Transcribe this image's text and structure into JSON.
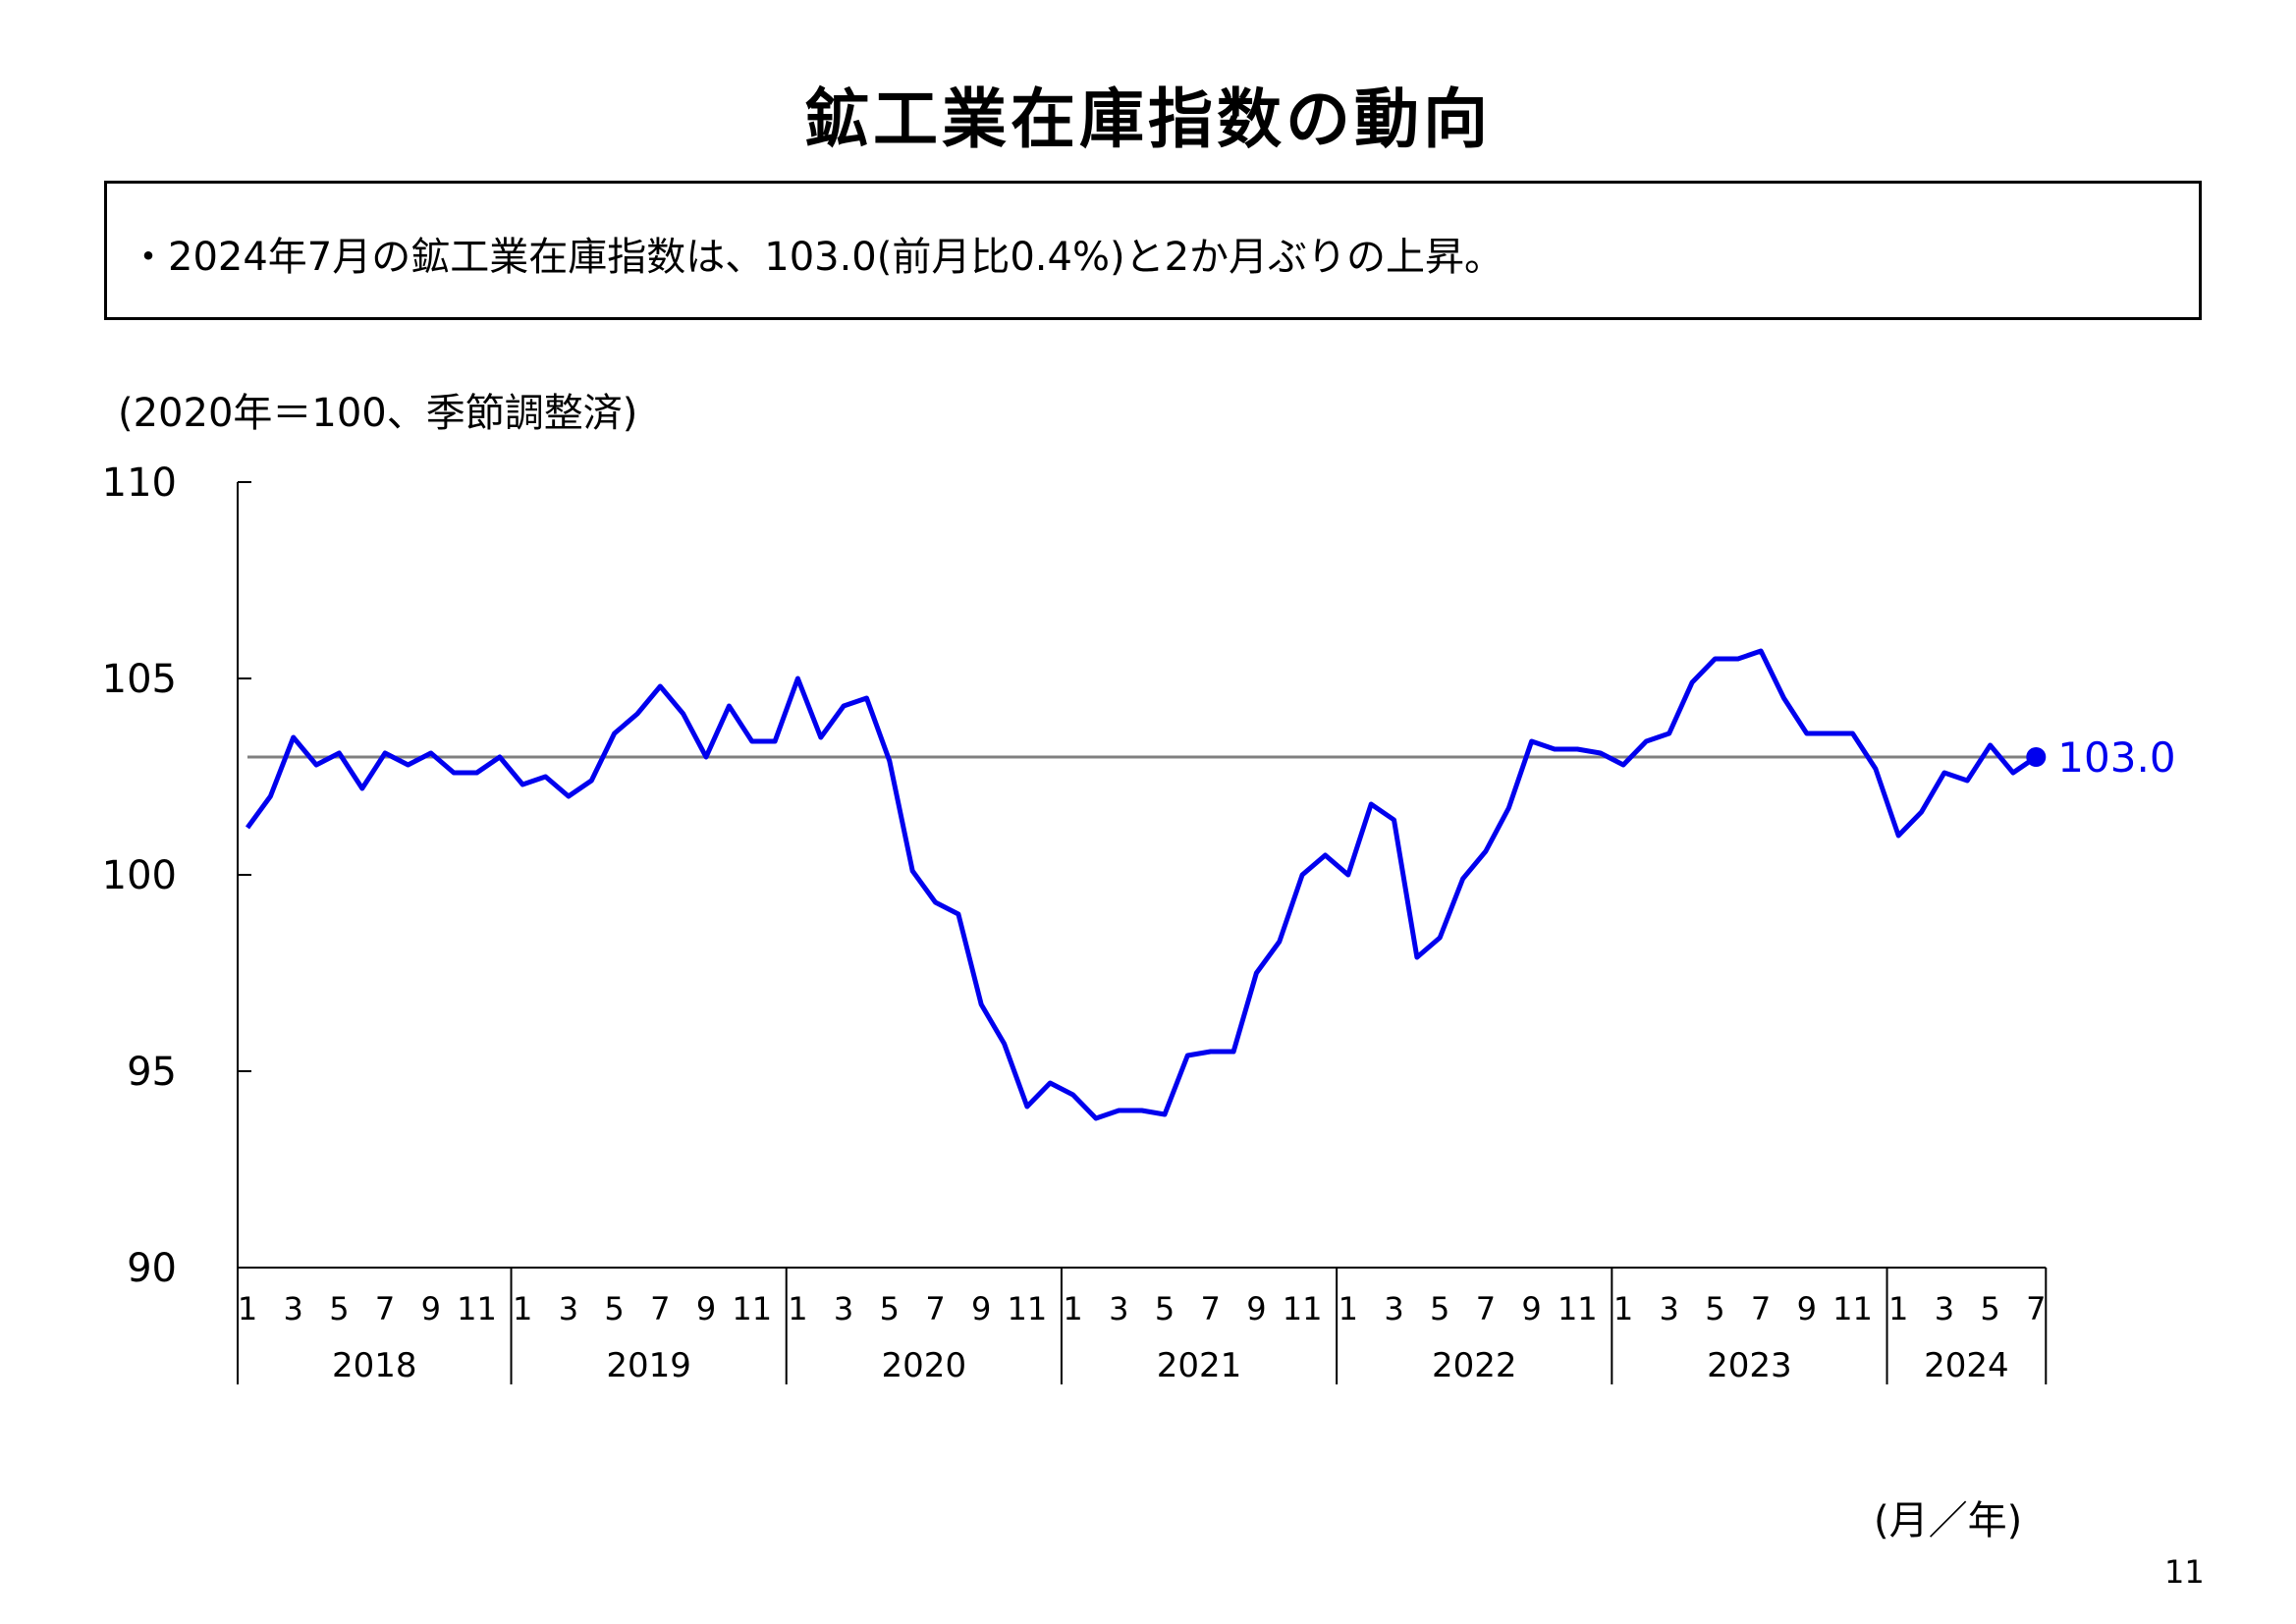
{
  "header": {
    "title": "鉱工業在庫指数の動向",
    "summary": "・2024年7月の鉱工業在庫指数は、103.0(前月比0.4%)と2か月ぶりの上昇。",
    "unit_note": "(2020年＝100、季節調整済)",
    "axis_unit": "(月／年)",
    "page_number": "11"
  },
  "colors": {
    "series": "#0000ee",
    "reference_line": "#808080",
    "axis": "#000000"
  },
  "chart_data": {
    "type": "line",
    "title": "鉱工業在庫指数の動向",
    "xlabel": "(月／年)",
    "ylabel": "(2020年＝100、季節調整済)",
    "ylim": [
      90,
      110
    ],
    "yticks": [
      90,
      95,
      100,
      105,
      110
    ],
    "grid": false,
    "reference_line": 103.0,
    "years": [
      {
        "label": "2018",
        "months": 12
      },
      {
        "label": "2019",
        "months": 12
      },
      {
        "label": "2020",
        "months": 12
      },
      {
        "label": "2021",
        "months": 12
      },
      {
        "label": "2022",
        "months": 12
      },
      {
        "label": "2023",
        "months": 12
      },
      {
        "label": "2024",
        "months": 7
      }
    ],
    "month_tick_labels": [
      "1",
      "3",
      "5",
      "7",
      "9",
      "11"
    ],
    "series": [
      {
        "values": [
          101.2,
          102.0,
          103.5,
          102.8,
          103.1,
          102.2,
          103.1,
          102.8,
          103.1,
          102.6,
          102.6,
          103.0,
          102.3,
          102.5,
          102.0,
          102.4,
          103.6,
          104.1,
          104.8,
          104.1,
          103.0,
          104.3,
          103.4,
          103.4,
          105.0,
          103.5,
          104.3,
          104.5,
          102.9,
          100.1,
          99.3,
          99.0,
          96.7,
          95.7,
          94.1,
          94.7,
          94.4,
          93.8,
          94.0,
          94.0,
          93.9,
          95.4,
          95.5,
          95.5,
          97.5,
          98.3,
          100.0,
          100.5,
          100.0,
          101.8,
          101.4,
          97.9,
          98.4,
          99.9,
          100.6,
          101.7,
          103.4,
          103.2,
          103.2,
          103.1,
          102.8,
          103.4,
          103.6,
          104.9,
          105.5,
          105.5,
          105.7,
          104.5,
          103.6,
          103.6,
          103.6,
          102.7,
          101.0,
          101.6,
          102.6,
          102.4,
          103.3,
          102.6,
          103.0
        ]
      }
    ],
    "last_value_label": "103.0"
  }
}
